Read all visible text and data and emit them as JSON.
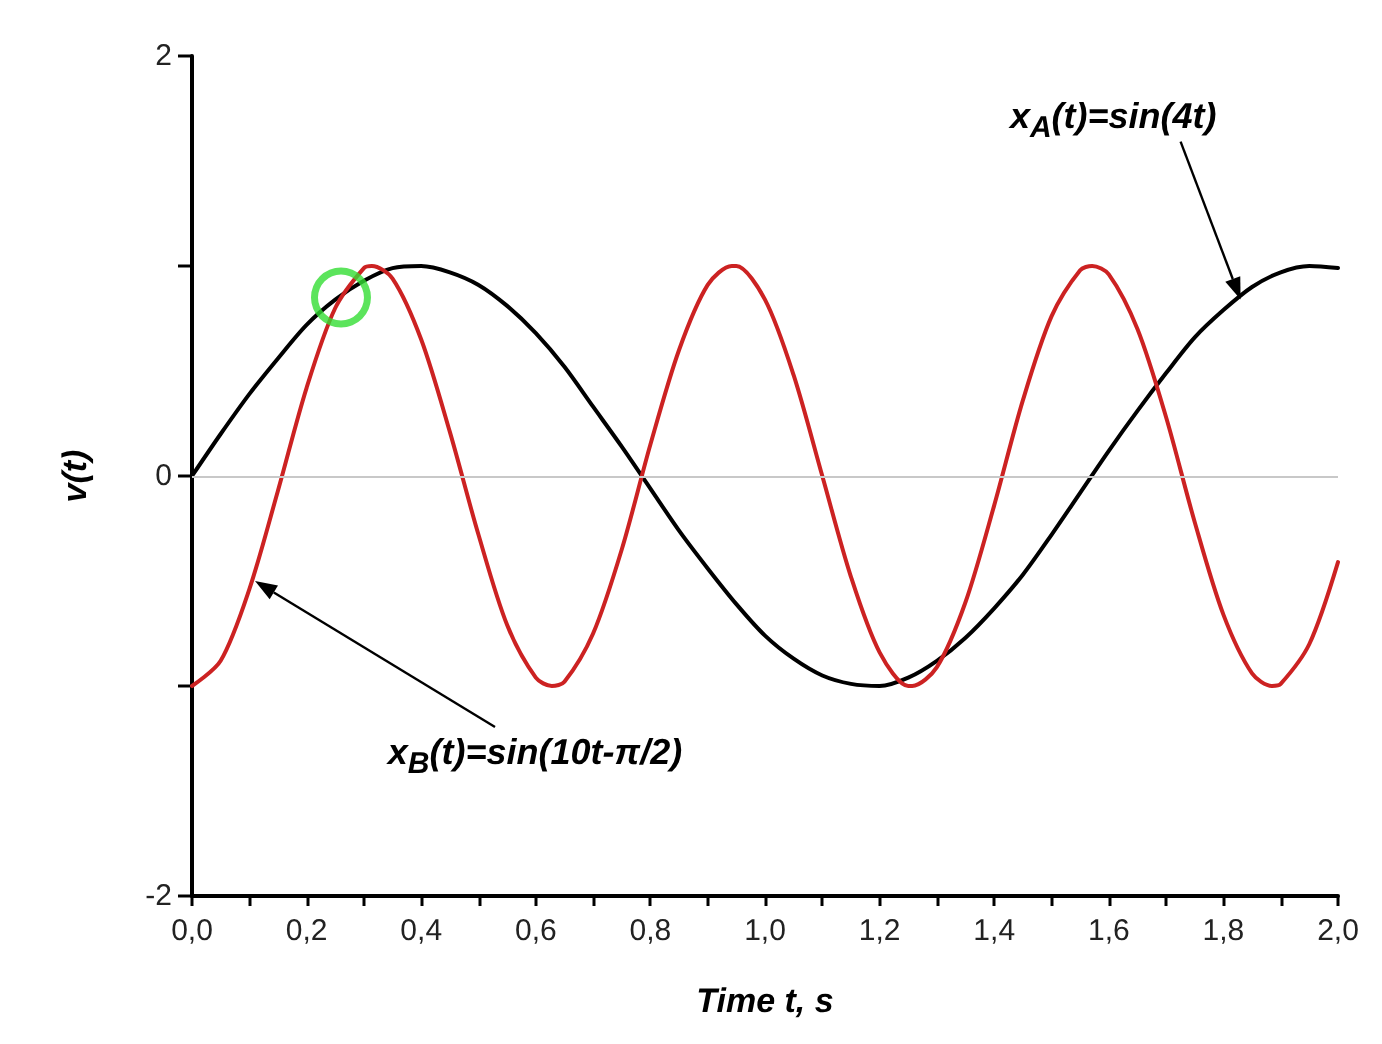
{
  "chart_data": {
    "type": "line",
    "xlabel": "Time t, s",
    "ylabel": "v(t)",
    "xlim": [
      0,
      2
    ],
    "ylim": [
      -2,
      2
    ],
    "xticks": [
      {
        "value": 0,
        "label": "0,0"
      },
      {
        "value": 0.1,
        "label": null
      },
      {
        "value": 0.2,
        "label": "0,2"
      },
      {
        "value": 0.3,
        "label": null
      },
      {
        "value": 0.4,
        "label": "0,4"
      },
      {
        "value": 0.5,
        "label": null
      },
      {
        "value": 0.6,
        "label": "0,6"
      },
      {
        "value": 0.7,
        "label": null
      },
      {
        "value": 0.8,
        "label": "0,8"
      },
      {
        "value": 0.9,
        "label": null
      },
      {
        "value": 1,
        "label": "1,0"
      },
      {
        "value": 1.1,
        "label": null
      },
      {
        "value": 1.2,
        "label": "1,2"
      },
      {
        "value": 1.3,
        "label": null
      },
      {
        "value": 1.4,
        "label": "1,4"
      },
      {
        "value": 1.5,
        "label": null
      },
      {
        "value": 1.6,
        "label": "1,6"
      },
      {
        "value": 1.7,
        "label": null
      },
      {
        "value": 1.8,
        "label": "1,8"
      },
      {
        "value": 1.9,
        "label": null
      },
      {
        "value": 2,
        "label": "2,0"
      }
    ],
    "yticks": [
      -2,
      {
        "value": -1,
        "label": null
      },
      0,
      {
        "value": 1,
        "label": null
      },
      2
    ],
    "grid": false,
    "marker": "none",
    "line_style": "solid",
    "ref_lines": [
      {
        "axis": "y",
        "value": 0,
        "color": "#c8c8c8"
      }
    ],
    "annotations": [
      "x$_{A}$(t)=sin(4t)",
      "x$_{B}$(t)=sin(10t-π/2)"
    ],
    "series": [
      {
        "color": "#000000",
        "x": [
          0,
          0.05,
          0.1,
          0.15,
          0.2,
          0.25,
          0.3,
          0.35,
          0.4,
          0.45,
          0.5,
          0.55,
          0.6,
          0.65,
          0.7,
          0.75,
          0.8,
          0.85,
          0.9,
          0.95,
          1,
          1.05,
          1.1,
          1.15,
          1.2,
          1.25,
          1.3,
          1.35,
          1.4,
          1.45,
          1.5,
          1.55,
          1.6,
          1.65,
          1.7,
          1.75,
          1.8,
          1.85,
          1.9,
          1.95,
          2
        ],
        "values": [
          0,
          0.2,
          0.39,
          0.56,
          0.72,
          0.84,
          0.93,
          0.99,
          1,
          0.97,
          0.91,
          0.81,
          0.68,
          0.52,
          0.33,
          0.14,
          -0.06,
          -0.26,
          -0.44,
          -0.61,
          -0.76,
          -0.87,
          -0.95,
          -0.99,
          -1,
          -0.96,
          -0.88,
          -0.77,
          -0.63,
          -0.47,
          -0.28,
          -0.08,
          0.12,
          0.31,
          0.49,
          0.66,
          0.79,
          0.9,
          0.97,
          1,
          0.99
        ]
      },
      {
        "color": "#cc2222",
        "x": [
          0,
          0.05,
          0.1,
          0.15,
          0.2,
          0.25,
          0.3,
          0.314,
          0.35,
          0.4,
          0.45,
          0.5,
          0.55,
          0.6,
          0.628,
          0.65,
          0.7,
          0.75,
          0.8,
          0.85,
          0.9,
          0.942,
          0.95,
          1,
          1.05,
          1.1,
          1.15,
          1.2,
          1.25,
          1.257,
          1.3,
          1.35,
          1.4,
          1.45,
          1.5,
          1.55,
          1.571,
          1.6,
          1.65,
          1.7,
          1.75,
          1.8,
          1.85,
          1.885,
          1.9,
          1.95,
          2
        ],
        "values": [
          -1,
          -0.88,
          -0.54,
          -0.07,
          0.42,
          0.8,
          0.99,
          1,
          0.94,
          0.65,
          0.21,
          -0.28,
          -0.71,
          -0.96,
          -1,
          -0.98,
          -0.75,
          -0.35,
          0.15,
          0.6,
          0.91,
          1,
          1,
          0.84,
          0.48,
          0,
          -0.48,
          -0.84,
          -1,
          -1,
          -0.91,
          -0.6,
          -0.14,
          0.36,
          0.76,
          0.98,
          1,
          0.96,
          0.7,
          0.28,
          -0.22,
          -0.66,
          -0.94,
          -1,
          -0.99,
          -0.8,
          -0.41
        ]
      },
      {
        "type": "scatter",
        "marker": "circle",
        "color": "#33dd33",
        "x": [
          0.26
        ],
        "values": [
          0.85
        ]
      }
    ]
  }
}
